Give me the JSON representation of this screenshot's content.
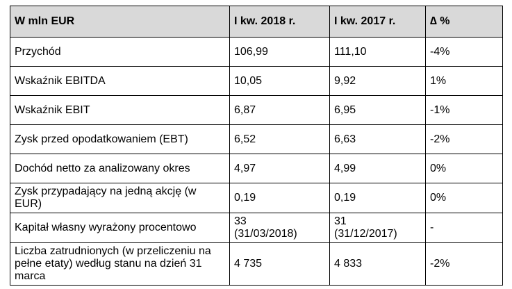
{
  "table": {
    "header": [
      "W mln EUR",
      "I kw. 2018 r.",
      "I kw. 2017 r.",
      "∆ %"
    ],
    "rows": [
      [
        "Przychód",
        "106,99",
        "111,10",
        "-4%"
      ],
      [
        "Wskaźnik EBITDA",
        "10,05",
        "9,92",
        "1%"
      ],
      [
        "Wskaźnik EBIT",
        "6,87",
        "6,95",
        "-1%"
      ],
      [
        "Zysk przed opodatkowaniem (EBT)",
        "6,52",
        "6,63",
        "-2%"
      ],
      [
        "Dochód netto za analizowany okres",
        "4,97",
        "4,99",
        "0%"
      ],
      [
        "Zysk przypadający na jedną akcję (w EUR)",
        "0,19",
        "0,19",
        "0%"
      ],
      [
        "Kapitał własny wyrażony procentowo",
        "33\n(31/03/2018)",
        "31\n(31/12/2017)",
        "-"
      ],
      [
        "Liczba zatrudnionych (w przeliczeniu na pełne etaty) według stanu na dzień 31 marca",
        "4 735",
        "4 833",
        "-2%"
      ]
    ]
  }
}
